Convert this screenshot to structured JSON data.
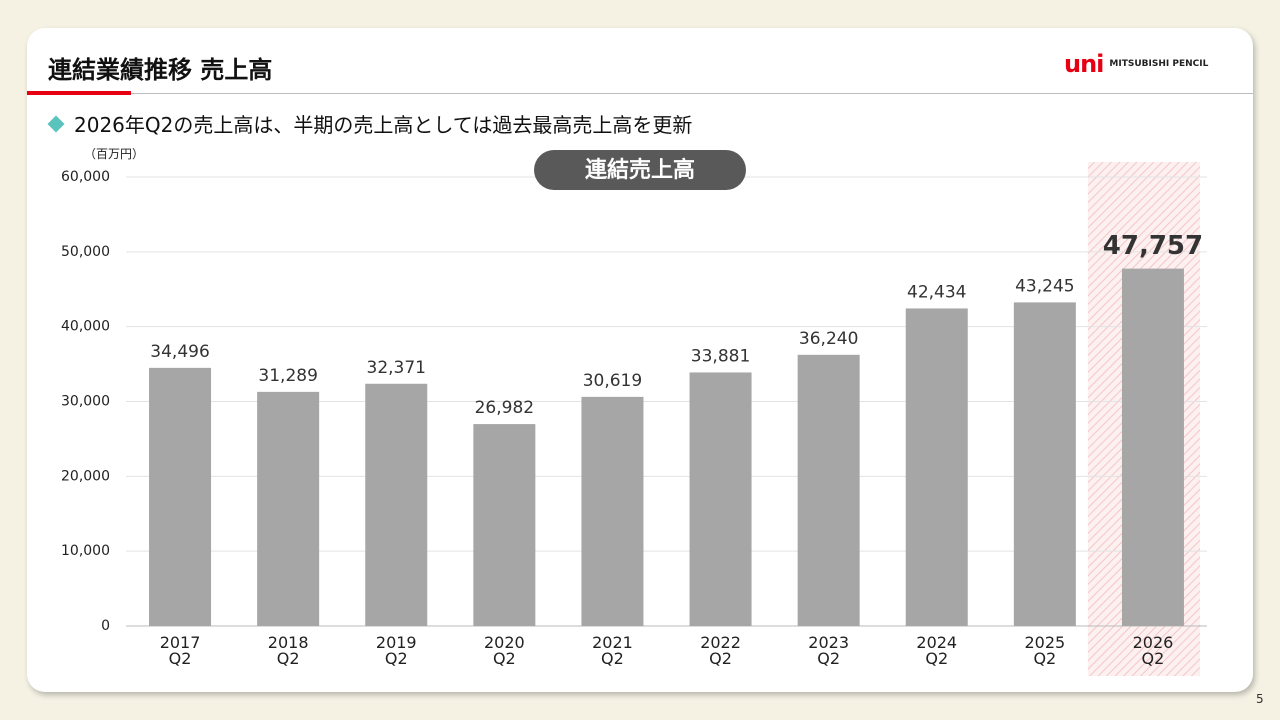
{
  "header": {
    "title": "連結業績推移 売上高",
    "logo_mark": "uni",
    "logo_text": "MITSUBISHI PENCIL"
  },
  "bullet": "2026年Q2の売上高は、半期の売上高としては過去最高売上高を更新",
  "page_number": "5",
  "chart_data": {
    "type": "bar",
    "title": "連結売上高",
    "y_unit": "（百万円）",
    "categories": [
      "2017\nQ2",
      "2018\nQ2",
      "2019\nQ2",
      "2020\nQ2",
      "2021\nQ2",
      "2022\nQ2",
      "2023\nQ2",
      "2024\nQ2",
      "2025\nQ2",
      "2026\nQ2"
    ],
    "values": [
      34496,
      31289,
      32371,
      26982,
      30619,
      33881,
      36240,
      42434,
      43245,
      47757
    ],
    "value_labels": [
      "34,496",
      "31,289",
      "32,371",
      "26,982",
      "30,619",
      "33,881",
      "36,240",
      "42,434",
      "43,245",
      "47,757"
    ],
    "color": "#a6a6a6",
    "ylim": [
      0,
      60000
    ],
    "yticks": [
      0,
      {
        "value": 10000,
        "label": "10,000"
      },
      {
        "value": 20000,
        "label": "20,000"
      },
      {
        "value": 30000,
        "label": "30,000"
      },
      {
        "value": 40000,
        "label": "40,000"
      },
      {
        "value": 50000,
        "label": "50,000"
      },
      {
        "value": 60000,
        "label": "60,000"
      }
    ],
    "grid": true
  }
}
